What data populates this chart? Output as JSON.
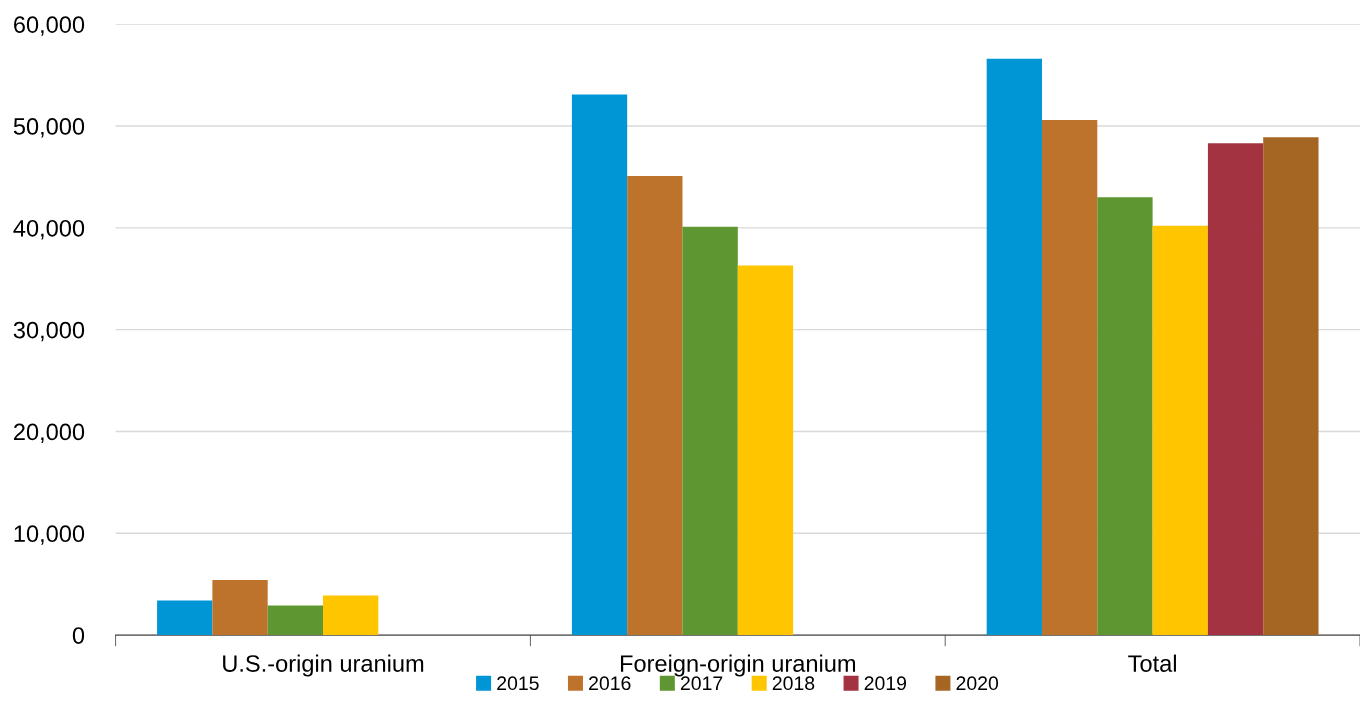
{
  "chart_data": {
    "type": "bar",
    "categories": [
      "U.S.-origin uranium",
      "Foreign-origin uranium",
      "Total"
    ],
    "series": [
      {
        "name": "2015",
        "color": "#0096d6",
        "values": [
          3400,
          53100,
          56600
        ]
      },
      {
        "name": "2016",
        "color": "#bd732b",
        "values": [
          5400,
          45100,
          50600
        ]
      },
      {
        "name": "2017",
        "color": "#5e9732",
        "values": [
          2900,
          40100,
          43000
        ]
      },
      {
        "name": "2018",
        "color": "#ffc600",
        "values": [
          3900,
          36300,
          40200
        ]
      },
      {
        "name": "2019",
        "color": "#a33340",
        "values": [
          null,
          null,
          48300
        ]
      },
      {
        "name": "2020",
        "color": "#a66623",
        "values": [
          null,
          null,
          48900
        ]
      }
    ],
    "ylim": [
      0,
      60000
    ],
    "yticks": [
      0,
      {
        "value": 10000,
        "label": "10,000"
      },
      {
        "value": 20000,
        "label": "20,000"
      },
      {
        "value": 30000,
        "label": "30,000"
      },
      {
        "value": 40000,
        "label": "40,000"
      },
      {
        "value": 50000,
        "label": "50,000"
      },
      {
        "value": 60000,
        "label": "60,000"
      }
    ],
    "grid": "y",
    "legend": "bottom"
  }
}
